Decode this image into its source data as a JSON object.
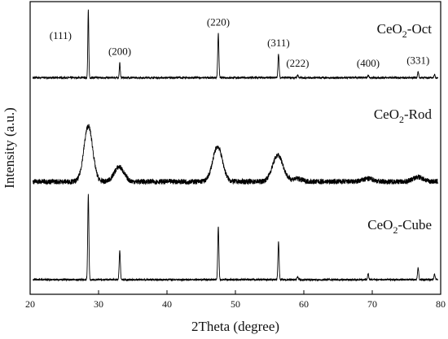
{
  "chart_data": {
    "type": "line",
    "xlabel": "2Theta (degree)",
    "ylabel": "Intensity (a.u.)",
    "xlim": [
      20,
      80
    ],
    "x_ticks": [
      20,
      30,
      40,
      50,
      60,
      70,
      80
    ],
    "grid": false,
    "peak_labels": [
      {
        "text": "(111)",
        "x": 28.5
      },
      {
        "text": "(200)",
        "x": 33.1
      },
      {
        "text": "(220)",
        "x": 47.5
      },
      {
        "text": "(311)",
        "x": 56.3
      },
      {
        "text": "(222)",
        "x": 59.1
      },
      {
        "text": "(400)",
        "x": 69.4
      },
      {
        "text": "(331)",
        "x": 76.7
      }
    ],
    "series": [
      {
        "name": "CeO2-Oct",
        "label_base": "CeO",
        "label_sub": "2",
        "label_suffix": "-Oct",
        "baseline": 0.74,
        "noise": 0.003,
        "peaks": [
          {
            "x": 28.5,
            "h": 0.23,
            "w": 0.1
          },
          {
            "x": 33.1,
            "h": 0.05,
            "w": 0.1
          },
          {
            "x": 47.5,
            "h": 0.15,
            "w": 0.12
          },
          {
            "x": 56.3,
            "h": 0.08,
            "w": 0.12
          },
          {
            "x": 59.1,
            "h": 0.01,
            "w": 0.12
          },
          {
            "x": 69.4,
            "h": 0.01,
            "w": 0.12
          },
          {
            "x": 76.7,
            "h": 0.02,
            "w": 0.12
          },
          {
            "x": 79.1,
            "h": 0.01,
            "w": 0.12
          }
        ]
      },
      {
        "name": "CeO2-Rod",
        "label_base": "CeO",
        "label_sub": "2",
        "label_suffix": "-Rod",
        "baseline": 0.385,
        "noise": 0.009,
        "peaks": [
          {
            "x": 28.5,
            "h": 0.19,
            "w": 0.9
          },
          {
            "x": 33.0,
            "h": 0.05,
            "w": 1.0
          },
          {
            "x": 47.4,
            "h": 0.12,
            "w": 1.0
          },
          {
            "x": 56.2,
            "h": 0.09,
            "w": 1.1
          },
          {
            "x": 59.0,
            "h": 0.01,
            "w": 1.0
          },
          {
            "x": 69.4,
            "h": 0.01,
            "w": 1.1
          },
          {
            "x": 76.7,
            "h": 0.015,
            "w": 1.1
          }
        ]
      },
      {
        "name": "CeO2-Cube",
        "label_base": "CeO",
        "label_sub": "2",
        "label_suffix": "-Cube",
        "baseline": 0.05,
        "noise": 0.003,
        "peaks": [
          {
            "x": 28.5,
            "h": 0.29,
            "w": 0.12
          },
          {
            "x": 33.1,
            "h": 0.1,
            "w": 0.12
          },
          {
            "x": 47.5,
            "h": 0.18,
            "w": 0.12
          },
          {
            "x": 56.3,
            "h": 0.13,
            "w": 0.12
          },
          {
            "x": 59.1,
            "h": 0.01,
            "w": 0.12
          },
          {
            "x": 69.4,
            "h": 0.02,
            "w": 0.12
          },
          {
            "x": 76.7,
            "h": 0.04,
            "w": 0.12
          },
          {
            "x": 79.1,
            "h": 0.02,
            "w": 0.12
          }
        ]
      }
    ]
  }
}
